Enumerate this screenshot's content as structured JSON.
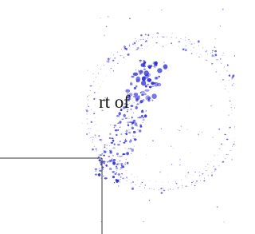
{
  "fragment": {
    "text": "rt of"
  }
}
